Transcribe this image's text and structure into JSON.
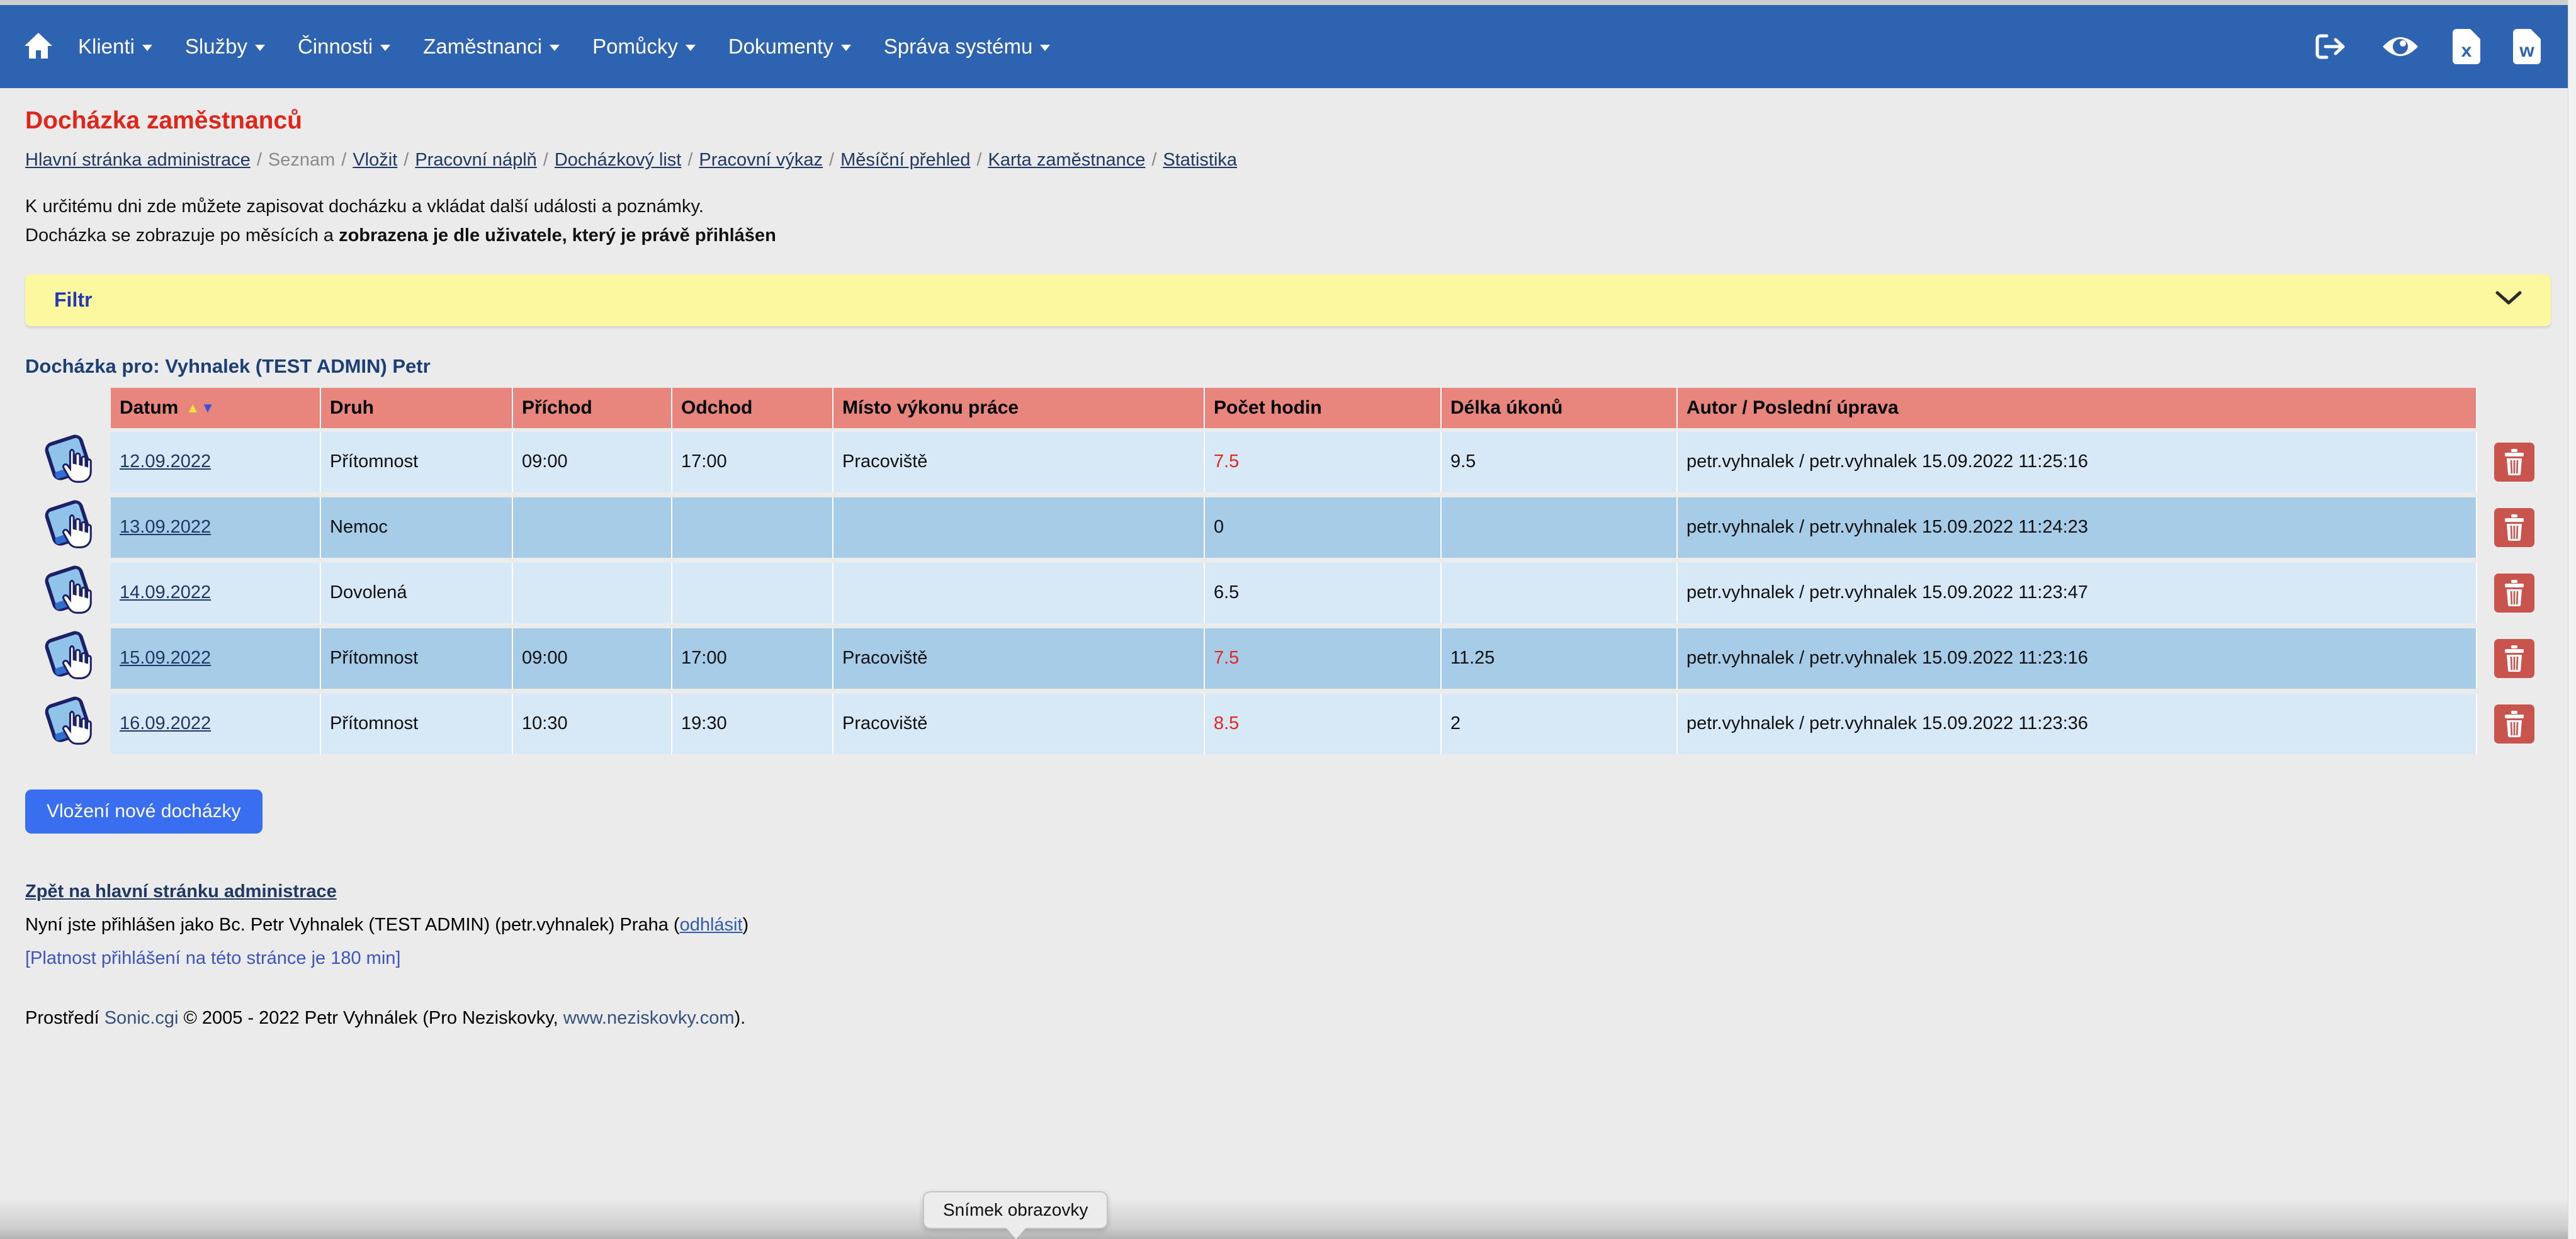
{
  "navbar": {
    "items": [
      {
        "label": "Klienti"
      },
      {
        "label": "Služby"
      },
      {
        "label": "Činnosti"
      },
      {
        "label": "Zaměstnanci"
      },
      {
        "label": "Pomůcky"
      },
      {
        "label": "Dokumenty"
      },
      {
        "label": "Správa systému"
      }
    ],
    "right_icons": [
      {
        "name": "logout-icon"
      },
      {
        "name": "eye-icon"
      },
      {
        "name": "excel-export-icon",
        "letter": "x"
      },
      {
        "name": "word-export-icon",
        "letter": "w"
      }
    ]
  },
  "page": {
    "title": "Docházka zaměstnanců"
  },
  "breadcrumb": {
    "items": [
      {
        "label": "Hlavní stránka administrace",
        "current": false
      },
      {
        "label": "Seznam",
        "current": true
      },
      {
        "label": "Vložit",
        "current": false
      },
      {
        "label": "Pracovní náplň",
        "current": false
      },
      {
        "label": "Docházkový list",
        "current": false
      },
      {
        "label": "Pracovní výkaz",
        "current": false
      },
      {
        "label": "Měsíční přehled",
        "current": false
      },
      {
        "label": "Karta zaměstnance",
        "current": false
      },
      {
        "label": "Statistika",
        "current": false
      }
    ],
    "separator": "/"
  },
  "intro": {
    "line1": "K určitému dni zde můžete zapisovat docházku a vkládat další události a poznámky.",
    "line2_normal": "Docházka se zobrazuje po měsících a ",
    "line2_bold": "zobrazena je dle uživatele, který je právě přihlášen"
  },
  "filter": {
    "label": "Filtr"
  },
  "attendance": {
    "heading": "Docházka pro: Vyhnalek (TEST ADMIN) Petr",
    "columns": [
      "Datum",
      "Druh",
      "Příchod",
      "Odchod",
      "Místo výkonu práce",
      "Počet hodin",
      "Délka úkonů",
      "Autor / Poslední úprava"
    ],
    "sort_icons": {
      "asc": "▲",
      "desc": "▼"
    },
    "rows": [
      {
        "datum": "12.09.2022",
        "druh": "Přítomnost",
        "prichod": "09:00",
        "odchod": "17:00",
        "misto": "Pracoviště",
        "pocet_hodin": "7.5",
        "pocet_red": true,
        "delka_ukonu": "9.5",
        "autor": "petr.vyhnalek / petr.vyhnalek 15.09.2022 11:25:16"
      },
      {
        "datum": "13.09.2022",
        "druh": "Nemoc",
        "prichod": "",
        "odchod": "",
        "misto": "",
        "pocet_hodin": "0",
        "pocet_red": false,
        "delka_ukonu": "",
        "autor": "petr.vyhnalek / petr.vyhnalek 15.09.2022 11:24:23"
      },
      {
        "datum": "14.09.2022",
        "druh": "Dovolená",
        "prichod": "",
        "odchod": "",
        "misto": "",
        "pocet_hodin": "6.5",
        "pocet_red": false,
        "delka_ukonu": "",
        "autor": "petr.vyhnalek / petr.vyhnalek 15.09.2022 11:23:47"
      },
      {
        "datum": "15.09.2022",
        "druh": "Přítomnost",
        "prichod": "09:00",
        "odchod": "17:00",
        "misto": "Pracoviště",
        "pocet_hodin": "7.5",
        "pocet_red": true,
        "delka_ukonu": "11.25",
        "autor": "petr.vyhnalek / petr.vyhnalek 15.09.2022 11:23:16"
      },
      {
        "datum": "16.09.2022",
        "druh": "Přítomnost",
        "prichod": "10:30",
        "odchod": "19:30",
        "misto": "Pracoviště",
        "pocet_hodin": "8.5",
        "pocet_red": true,
        "delka_ukonu": "2",
        "autor": "petr.vyhnalek / petr.vyhnalek 15.09.2022 11:23:36"
      }
    ]
  },
  "actions": {
    "add_button": "Vložení nové docházky"
  },
  "footer": {
    "back_link": "Zpět na hlavní stránku administrace",
    "login_prefix": "Nyní jste přihlášen jako Bc. Petr Vyhnalek (TEST ADMIN) (petr.vyhnalek)  Praha (",
    "logout_link": "odhlásit",
    "login_suffix": ")",
    "validity": "[Platnost přihlášení na této stránce je 180 min]",
    "env_prefix": "Prostředí ",
    "env_link1": "Sonic.cgi",
    "env_mid": " © 2005 - 2022 Petr Vyhnálek (Pro Neziskovky, ",
    "env_link2": "www.neziskovky.com",
    "env_suffix": ")."
  },
  "tooltip": {
    "label": "Snímek obrazovky"
  },
  "colors": {
    "navbar_blue": "#2d63b1",
    "title_red": "#e0261b",
    "link_navy": "#1f3864",
    "filter_yellow": "#fcf8a0",
    "header_salmon": "#e8857c",
    "row_light": "#d7e9f7",
    "row_dark": "#a6cce8",
    "hours_red": "#e3251c",
    "button_blue": "#3a6ef0",
    "trash_red": "#c9544e"
  }
}
